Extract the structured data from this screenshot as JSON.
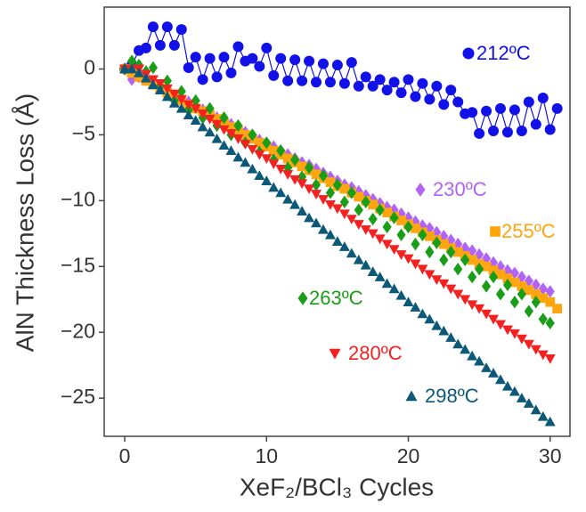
{
  "chart_data": {
    "type": "scatter",
    "xlabel": "XeF₂/BCl₃ Cycles",
    "ylabel": "AlN Thickness Loss (Å)",
    "xlim": [
      -1.45,
      31.4
    ],
    "ylim": [
      -27.9,
      4.7
    ],
    "xticks": [
      0,
      10,
      20,
      30
    ],
    "yticks": [
      0,
      {
        "value": -5,
        "label": "−5"
      },
      {
        "value": -10,
        "label": "−10"
      },
      {
        "value": -15,
        "label": "−15"
      },
      {
        "value": -20,
        "label": "−20"
      },
      {
        "value": -25,
        "label": "−25"
      }
    ],
    "grid": false,
    "x": [
      0,
      0.5,
      1,
      1.5,
      2,
      2.5,
      3,
      3.5,
      4,
      4.5,
      5,
      5.5,
      6,
      6.5,
      7,
      7.5,
      8,
      8.5,
      9,
      9.5,
      10,
      10.5,
      11,
      11.5,
      12,
      12.5,
      13,
      13.5,
      14,
      14.5,
      15,
      15.5,
      16,
      16.5,
      17,
      17.5,
      18,
      18.5,
      19,
      19.5,
      20,
      20.5,
      21,
      21.5,
      22,
      22.5,
      23,
      23.5,
      24,
      24.5,
      25,
      25.5,
      26,
      26.5,
      27,
      27.5,
      28,
      28.5,
      29,
      29.5,
      30,
      30.5,
      31
    ],
    "series": [
      {
        "name": "212ºC",
        "color": "#1111e8",
        "marker": "circle",
        "line": true,
        "values": [
          0,
          0.3,
          1.4,
          1.6,
          3.2,
          1.8,
          3.2,
          1.8,
          3.0,
          0.1,
          0.9,
          -0.8,
          0.8,
          -0.6,
          0.9,
          -0.3,
          1.7,
          0.6,
          0.8,
          0.2,
          1.6,
          -0.5,
          0.8,
          -0.9,
          0.7,
          -0.9,
          0.6,
          -1.0,
          0.4,
          -1.0,
          0.3,
          -1.1,
          0.5,
          -1.3,
          -0.6,
          -1.3,
          -0.8,
          -1.6,
          -1.0,
          -1.8,
          -0.8,
          -2.1,
          -1.1,
          -2.3,
          -1.3,
          -2.7,
          -1.6,
          -2.5,
          -3.4,
          -3.3,
          -4.9,
          -3.2,
          -4.7,
          -3.0,
          -4.8,
          -3.1,
          -4.7,
          -2.5,
          -4.2,
          -2.2,
          -4.6,
          -3.0,
          null
        ]
      },
      {
        "name": "230ºC",
        "color": "#b163f5",
        "marker": "diamond",
        "line": false,
        "values": [
          0,
          -0.8,
          -0.6,
          -0.8,
          -1.1,
          -1.4,
          -1.7,
          -2.0,
          -2.3,
          -2.5,
          -2.8,
          -3.1,
          -3.4,
          -3.7,
          -4.0,
          -4.2,
          -4.5,
          -4.8,
          -5.1,
          -5.4,
          -5.7,
          -5.9,
          -6.2,
          -6.5,
          -6.8,
          -7.1,
          -7.3,
          -7.6,
          -7.9,
          -8.2,
          -8.5,
          -8.8,
          -9.0,
          -9.3,
          -9.6,
          -9.9,
          -10.2,
          -10.5,
          -10.7,
          -11.0,
          -11.3,
          -11.6,
          -11.9,
          -12.1,
          -12.4,
          -12.7,
          -13.0,
          -13.3,
          -13.6,
          -13.8,
          -14.1,
          -14.4,
          -14.7,
          -15.0,
          -15.3,
          -15.5,
          -15.8,
          -16.1,
          -16.4,
          -16.7,
          -16.9,
          null,
          null
        ]
      },
      {
        "name": "255ºC",
        "color": "#ffa510",
        "marker": "square",
        "line": false,
        "values": [
          0,
          -0.3,
          -0.6,
          -0.9,
          -1.2,
          -1.5,
          -1.8,
          -2.1,
          -2.4,
          -2.7,
          -3.0,
          -3.2,
          -3.5,
          -3.8,
          -4.1,
          -4.4,
          -4.7,
          -5.0,
          -5.3,
          -5.6,
          -5.9,
          -6.2,
          -6.5,
          -6.8,
          -7.1,
          -7.4,
          -7.7,
          -8.0,
          -8.3,
          -8.6,
          -8.9,
          -9.1,
          -9.4,
          -9.7,
          -10.0,
          -10.3,
          -10.6,
          -10.9,
          -11.2,
          -11.5,
          -11.8,
          -12.1,
          -12.4,
          -12.7,
          -13.0,
          -13.3,
          -13.6,
          -13.9,
          -14.2,
          -14.5,
          -14.8,
          -15.0,
          -15.3,
          -15.6,
          -15.9,
          -16.2,
          -16.5,
          -16.8,
          -17.1,
          -17.4,
          -17.7,
          -18.2,
          null
        ]
      },
      {
        "name": "263ºC",
        "color": "#1a9e1a",
        "marker": "diamond",
        "line": false,
        "values": [
          0,
          0.6,
          0.3,
          -0.2,
          0.1,
          -1.3,
          -0.9,
          -2.4,
          -1.7,
          -3.1,
          -2.4,
          -3.7,
          -3.0,
          -4.3,
          -3.7,
          -5.0,
          -4.3,
          -5.6,
          -5.0,
          -6.3,
          -5.6,
          -6.9,
          -6.2,
          -7.5,
          -6.9,
          -8.2,
          -7.5,
          -8.8,
          -8.1,
          -9.4,
          -8.8,
          -10.1,
          -9.4,
          -10.7,
          -10.1,
          -11.4,
          -10.7,
          -12.0,
          -11.3,
          -12.6,
          -12.0,
          -13.3,
          -12.6,
          -13.9,
          -13.2,
          -14.5,
          -13.9,
          -15.2,
          -14.5,
          -15.8,
          -15.2,
          -16.5,
          -15.8,
          -17.1,
          -16.4,
          -17.7,
          -17.1,
          -18.4,
          -17.7,
          -19.0,
          -19.3,
          null,
          null
        ]
      },
      {
        "name": "280ºC",
        "color": "#f52020",
        "marker": "triangle-down",
        "line": false,
        "values": [
          0,
          0,
          0,
          -0.4,
          -0.8,
          -1.1,
          -1.5,
          -1.9,
          -2.3,
          -2.7,
          -3.0,
          -3.4,
          -3.8,
          -4.2,
          -4.6,
          -4.9,
          -5.3,
          -5.7,
          -6.1,
          -6.5,
          -6.8,
          -7.2,
          -7.6,
          -8.0,
          -8.4,
          -8.7,
          -9.1,
          -9.5,
          -9.9,
          -10.3,
          -10.6,
          -11.0,
          -11.4,
          -11.8,
          -12.2,
          -12.5,
          -12.9,
          -13.3,
          -13.7,
          -14.1,
          -14.4,
          -14.8,
          -15.2,
          -15.6,
          -16.0,
          -16.3,
          -16.7,
          -17.1,
          -17.5,
          -17.9,
          -18.2,
          -18.6,
          -19.0,
          -19.4,
          -19.8,
          -20.1,
          -20.5,
          -20.9,
          -21.3,
          -21.7,
          -22.0,
          null,
          null
        ]
      },
      {
        "name": "298ºC",
        "color": "#0b5878",
        "marker": "triangle-up",
        "line": false,
        "values": [
          0,
          0,
          -0.3,
          -0.7,
          -1.2,
          -1.6,
          -2.1,
          -2.6,
          -3.0,
          -3.5,
          -3.9,
          -4.4,
          -4.8,
          -5.3,
          -5.8,
          -6.2,
          -6.7,
          -7.1,
          -7.6,
          -8.1,
          -8.5,
          -9.0,
          -9.4,
          -9.9,
          -10.3,
          -10.8,
          -11.3,
          -11.7,
          -12.2,
          -12.6,
          -13.1,
          -13.5,
          -14.0,
          -14.5,
          -14.9,
          -15.4,
          -15.8,
          -16.3,
          -16.7,
          -17.2,
          -17.7,
          -18.1,
          -18.6,
          -19.0,
          -19.5,
          -19.9,
          -20.4,
          -20.9,
          -21.3,
          -21.8,
          -22.2,
          -22.7,
          -23.1,
          -23.6,
          -24.1,
          -24.5,
          -25.0,
          -25.4,
          -25.9,
          -26.4,
          -26.8,
          null,
          null
        ]
      }
    ]
  }
}
